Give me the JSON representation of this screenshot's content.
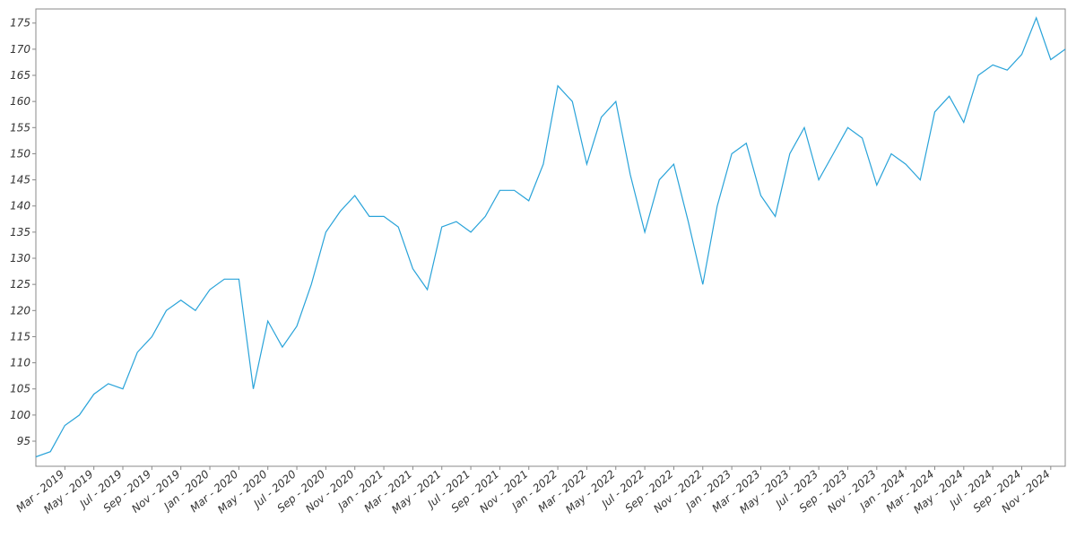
{
  "chart_data": {
    "type": "line",
    "color": "#29a3d9",
    "x": [
      "2019-01",
      "2019-02",
      "2019-03",
      "2019-04",
      "2019-05",
      "2019-06",
      "2019-07",
      "2019-08",
      "2019-09",
      "2019-10",
      "2019-11",
      "2019-12",
      "2020-01",
      "2020-02",
      "2020-03",
      "2020-04",
      "2020-05",
      "2020-06",
      "2020-07",
      "2020-08",
      "2020-09",
      "2020-10",
      "2020-11",
      "2020-12",
      "2021-01",
      "2021-02",
      "2021-03",
      "2021-04",
      "2021-05",
      "2021-06",
      "2021-07",
      "2021-08",
      "2021-09",
      "2021-10",
      "2021-11",
      "2021-12",
      "2022-01",
      "2022-02",
      "2022-03",
      "2022-04",
      "2022-05",
      "2022-06",
      "2022-07",
      "2022-08",
      "2022-09",
      "2022-10",
      "2022-11",
      "2022-12",
      "2023-01",
      "2023-02",
      "2023-03",
      "2023-04",
      "2023-05",
      "2023-06",
      "2023-07",
      "2023-08",
      "2023-09",
      "2023-10",
      "2023-11",
      "2023-12",
      "2024-01",
      "2024-02",
      "2024-03",
      "2024-04",
      "2024-05",
      "2024-06",
      "2024-07",
      "2024-08",
      "2024-09",
      "2024-10",
      "2024-11",
      "2024-12"
    ],
    "values": [
      92,
      93,
      98,
      100,
      104,
      106,
      105,
      112,
      115,
      120,
      122,
      120,
      124,
      126,
      126,
      105,
      118,
      113,
      117,
      125,
      135,
      139,
      142,
      138,
      138,
      136,
      128,
      124,
      136,
      137,
      135,
      138,
      143,
      143,
      141,
      148,
      163,
      160,
      148,
      157,
      160,
      146,
      135,
      145,
      148,
      137,
      125,
      140,
      150,
      152,
      142,
      138,
      150,
      155,
      145,
      150,
      155,
      153,
      144,
      150,
      148,
      145,
      158,
      161,
      156,
      165,
      167,
      166,
      169,
      176,
      168,
      170
    ],
    "xlim": [
      "2019-01",
      "2024-12"
    ],
    "xticks": [
      {
        "value": "2019-03",
        "label": "Mar - 2019"
      },
      {
        "value": "2019-05",
        "label": "May - 2019"
      },
      {
        "value": "2019-07",
        "label": "Jul - 2019"
      },
      {
        "value": "2019-09",
        "label": "Sep - 2019"
      },
      {
        "value": "2019-11",
        "label": "Nov - 2019"
      },
      {
        "value": "2020-01",
        "label": "Jan - 2020"
      },
      {
        "value": "2020-03",
        "label": "Mar - 2020"
      },
      {
        "value": "2020-05",
        "label": "May - 2020"
      },
      {
        "value": "2020-07",
        "label": "Jul - 2020"
      },
      {
        "value": "2020-09",
        "label": "Sep - 2020"
      },
      {
        "value": "2020-11",
        "label": "Nov - 2020"
      },
      {
        "value": "2021-01",
        "label": "Jan - 2021"
      },
      {
        "value": "2021-03",
        "label": "Mar - 2021"
      },
      {
        "value": "2021-05",
        "label": "May - 2021"
      },
      {
        "value": "2021-07",
        "label": "Jul - 2021"
      },
      {
        "value": "2021-09",
        "label": "Sep - 2021"
      },
      {
        "value": "2021-11",
        "label": "Nov - 2021"
      },
      {
        "value": "2022-01",
        "label": "Jan - 2022"
      },
      {
        "value": "2022-03",
        "label": "Mar - 2022"
      },
      {
        "value": "2022-05",
        "label": "May - 2022"
      },
      {
        "value": "2022-07",
        "label": "Jul - 2022"
      },
      {
        "value": "2022-09",
        "label": "Sep - 2022"
      },
      {
        "value": "2022-11",
        "label": "Nov - 2022"
      },
      {
        "value": "2023-01",
        "label": "Jan - 2023"
      },
      {
        "value": "2023-03",
        "label": "Mar - 2023"
      },
      {
        "value": "2023-05",
        "label": "May - 2023"
      },
      {
        "value": "2023-07",
        "label": "Jul - 2023"
      },
      {
        "value": "2023-09",
        "label": "Sep - 2023"
      },
      {
        "value": "2023-11",
        "label": "Nov - 2023"
      },
      {
        "value": "2024-01",
        "label": "Jan - 2024"
      },
      {
        "value": "2024-03",
        "label": "Mar - 2024"
      },
      {
        "value": "2024-05",
        "label": "May - 2024"
      },
      {
        "value": "2024-07",
        "label": "Jul - 2024"
      },
      {
        "value": "2024-09",
        "label": "Sep - 2024"
      },
      {
        "value": "2024-11",
        "label": "Nov - 2024"
      }
    ],
    "ylim": [
      90.2,
      177.7
    ],
    "yticks": [
      95,
      100,
      105,
      110,
      115,
      120,
      125,
      130,
      135,
      140,
      145,
      150,
      155,
      160,
      165,
      170,
      175
    ]
  }
}
